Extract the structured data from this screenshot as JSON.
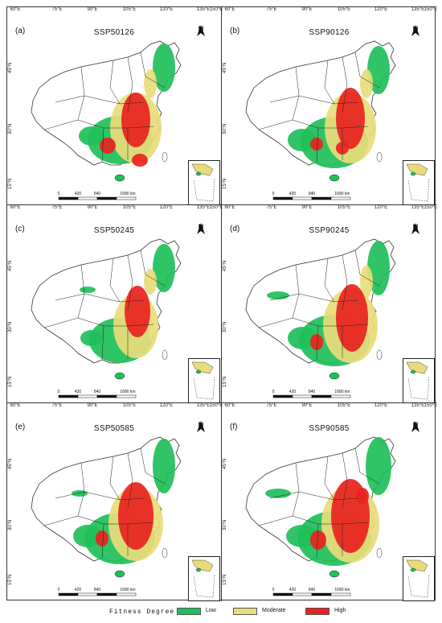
{
  "lon_ticks": [
    "60°E",
    "75°E",
    "90°E",
    "105°E",
    "120°E",
    "135°E",
    "150°E"
  ],
  "lat_ticks": [
    "15°N",
    "30°N",
    "45°N"
  ],
  "north_label": "N",
  "scale_labels": [
    "0",
    "420",
    "840",
    "1680 km"
  ],
  "panels": [
    {
      "label": "(a)",
      "title": "SSP50126"
    },
    {
      "label": "(b)",
      "title": "SSP90126"
    },
    {
      "label": "(c)",
      "title": "SSP50245"
    },
    {
      "label": "(d)",
      "title": "SSP90245"
    },
    {
      "label": "(e)",
      "title": "SSP50585"
    },
    {
      "label": "(f)",
      "title": "SSP90585"
    }
  ],
  "legend": {
    "title": "Fitness Degree",
    "items": [
      {
        "label": "Low",
        "color": "#1fbf5a"
      },
      {
        "label": "Moderate",
        "color": "#e8dc7a"
      },
      {
        "label": "High",
        "color": "#e8231f"
      }
    ]
  },
  "colors": {
    "low": "#1fbf5a",
    "moderate": "#e8dc7a",
    "high": "#e8231f",
    "border": "#333333"
  }
}
